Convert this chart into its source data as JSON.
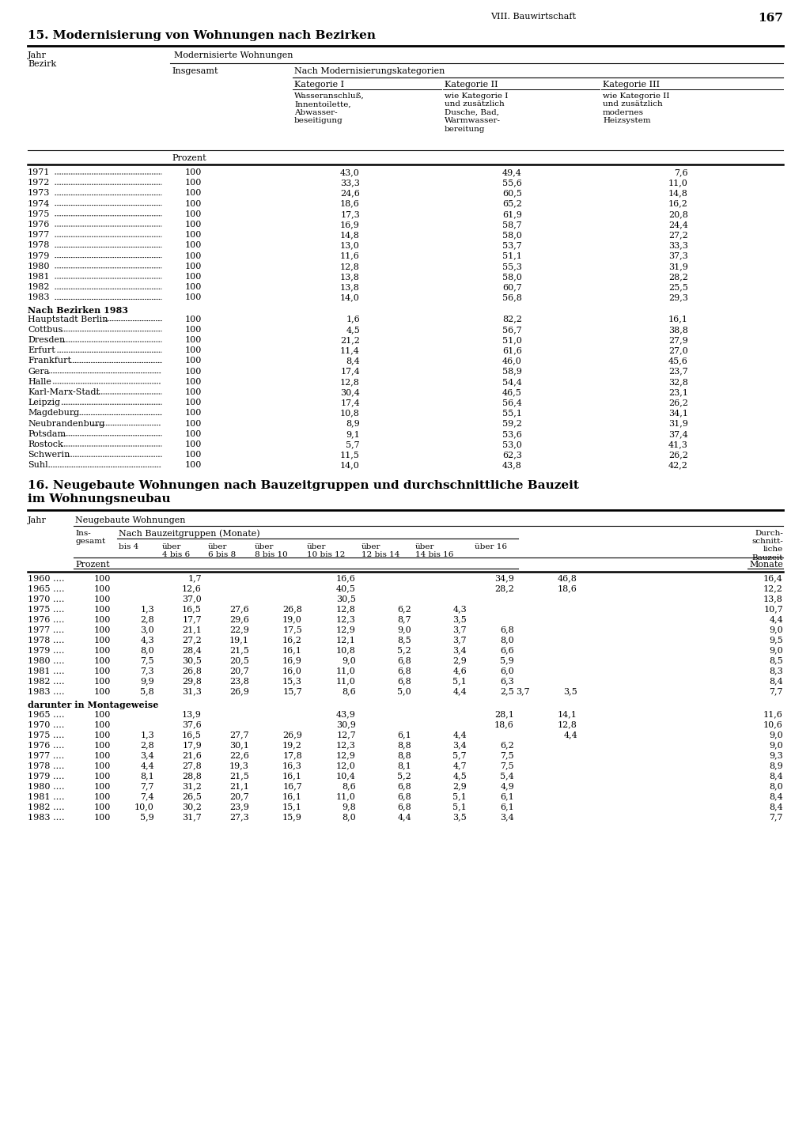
{
  "page_header": "VIII. Bauwirtschaft",
  "page_number": "167",
  "section15_title": "15. Modernisierung von Wohnungen nach Bezirken",
  "section15_years": [
    [
      "1971",
      "100",
      "43,0",
      "49,4",
      "7,6"
    ],
    [
      "1972",
      "100",
      "33,3",
      "55,6",
      "11,0"
    ],
    [
      "1973",
      "100",
      "24,6",
      "60,5",
      "14,8"
    ],
    [
      "1974",
      "100",
      "18,6",
      "65,2",
      "16,2"
    ],
    [
      "1975",
      "100",
      "17,3",
      "61,9",
      "20,8"
    ],
    [
      "1976",
      "100",
      "16,9",
      "58,7",
      "24,4"
    ],
    [
      "1977",
      "100",
      "14,8",
      "58,0",
      "27,2"
    ],
    [
      "1978",
      "100",
      "13,0",
      "53,7",
      "33,3"
    ],
    [
      "1979",
      "100",
      "11,6",
      "51,1",
      "37,3"
    ],
    [
      "1980",
      "100",
      "12,8",
      "55,3",
      "31,9"
    ],
    [
      "1981",
      "100",
      "13,8",
      "58,0",
      "28,2"
    ],
    [
      "1982",
      "100",
      "13,8",
      "60,7",
      "25,5"
    ],
    [
      "1983",
      "100",
      "14,0",
      "56,8",
      "29,3"
    ]
  ],
  "section15_bezirken_header": "Nach Bezirken 1983",
  "section15_bezirken": [
    [
      "Hauptstadt Berlin",
      "100",
      "1,6",
      "82,2",
      "16,1"
    ],
    [
      "Cottbus",
      "100",
      "4,5",
      "56,7",
      "38,8"
    ],
    [
      "Dresden",
      "100",
      "21,2",
      "51,0",
      "27,9"
    ],
    [
      "Erfurt",
      "100",
      "11,4",
      "61,6",
      "27,0"
    ],
    [
      "Frankfurt",
      "100",
      "8,4",
      "46,0",
      "45,6"
    ],
    [
      "Gera",
      "100",
      "17,4",
      "58,9",
      "23,7"
    ],
    [
      "Halle",
      "100",
      "12,8",
      "54,4",
      "32,8"
    ],
    [
      "Karl-Marx-Stadt",
      "100",
      "30,4",
      "46,5",
      "23,1"
    ],
    [
      "Leipzig",
      "100",
      "17,4",
      "56,4",
      "26,2"
    ],
    [
      "Magdeburg",
      "100",
      "10,8",
      "55,1",
      "34,1"
    ],
    [
      "Neubrandenburg",
      "100",
      "8,9",
      "59,2",
      "31,9"
    ],
    [
      "Potsdam",
      "100",
      "9,1",
      "53,6",
      "37,4"
    ],
    [
      "Rostock",
      "100",
      "5,7",
      "53,0",
      "41,3"
    ],
    [
      "Schwerin",
      "100",
      "11,5",
      "62,3",
      "26,2"
    ],
    [
      "Suhl",
      "100",
      "14,0",
      "43,8",
      "42,2"
    ]
  ],
  "section16_title_line1": "16. Neugebaute Wohnungen nach Bauzeitgruppen und durchschnittliche Bauzeit",
  "section16_title_line2": "im Wohnungsneubau",
  "section16_data": [
    [
      "1960 ….",
      "100",
      "",
      "1,7",
      "",
      "",
      "16,6",
      "",
      "",
      "34,9",
      "",
      "46,8",
      "16,4"
    ],
    [
      "1965 ….",
      "100",
      "",
      "12,6",
      "",
      "",
      "40,5",
      "",
      "",
      "28,2",
      "",
      "18,6",
      "12,2"
    ],
    [
      "1970 ….",
      "100",
      "",
      "37,0",
      "",
      "",
      "30,5",
      "",
      "",
      "",
      "",
      "",
      "13,8"
    ],
    [
      "1975 ….",
      "100",
      "1,3",
      "16,5",
      "27,6",
      "26,8",
      "12,8",
      "6,2",
      "4,3",
      "",
      "",
      "",
      "10,7"
    ],
    [
      "1976 ….",
      "100",
      "2,8",
      "17,7",
      "29,6",
      "19,0",
      "12,3",
      "8,7",
      "3,5",
      "",
      "",
      "",
      "4,4"
    ],
    [
      "1977 ….",
      "100",
      "3,0",
      "21,1",
      "22,9",
      "17,5",
      "12,9",
      "9,0",
      "3,7",
      "6,8",
      "",
      "",
      "9,0"
    ],
    [
      "1978 ….",
      "100",
      "4,3",
      "27,2",
      "19,1",
      "16,2",
      "12,1",
      "8,5",
      "3,7",
      "8,0",
      "",
      "",
      "9,5"
    ],
    [
      "1979 ….",
      "100",
      "8,0",
      "28,4",
      "21,5",
      "16,1",
      "10,8",
      "5,2",
      "3,4",
      "6,6",
      "",
      "",
      "9,0"
    ],
    [
      "1980 ….",
      "100",
      "7,5",
      "30,5",
      "20,5",
      "16,9",
      "9,0",
      "6,8",
      "2,9",
      "5,9",
      "",
      "",
      "8,5"
    ],
    [
      "1981 ….",
      "100",
      "7,3",
      "26,8",
      "20,7",
      "16,0",
      "11,0",
      "6,8",
      "4,6",
      "6,0",
      "",
      "",
      "8,3"
    ],
    [
      "1982 ….",
      "100",
      "9,9",
      "29,8",
      "23,8",
      "15,3",
      "11,0",
      "6,8",
      "5,1",
      "6,3",
      "",
      "",
      "8,4"
    ],
    [
      "1983 ….",
      "100",
      "5,8",
      "31,3",
      "26,9",
      "15,7",
      "8,6",
      "5,0",
      "4,4",
      "2,5",
      "3,7",
      "3,5",
      "7,7"
    ]
  ],
  "section16_montage_header": "darunter in Montageweise",
  "section16_montage": [
    [
      "1965 ….",
      "100",
      "",
      "13,9",
      "",
      "",
      "43,9",
      "",
      "",
      "28,1",
      "",
      "14,1",
      "11,6"
    ],
    [
      "1970 ….",
      "100",
      "",
      "37,6",
      "",
      "",
      "30,9",
      "",
      "",
      "18,6",
      "",
      "12,8",
      "10,6"
    ],
    [
      "1975 ….",
      "100",
      "1,3",
      "16,5",
      "27,7",
      "26,9",
      "12,7",
      "6,1",
      "4,4",
      "",
      "",
      "4,4",
      "9,0"
    ],
    [
      "1976 ….",
      "100",
      "2,8",
      "17,9",
      "30,1",
      "19,2",
      "12,3",
      "8,8",
      "3,4",
      "6,2",
      "",
      "",
      "9,0"
    ],
    [
      "1977 ….",
      "100",
      "3,4",
      "21,6",
      "22,6",
      "17,8",
      "12,9",
      "8,8",
      "5,7",
      "7,5",
      "",
      "",
      "9,3"
    ],
    [
      "1978 ….",
      "100",
      "4,4",
      "27,8",
      "19,3",
      "16,3",
      "12,0",
      "8,1",
      "4,7",
      "7,5",
      "",
      "",
      "8,9"
    ],
    [
      "1979 ….",
      "100",
      "8,1",
      "28,8",
      "21,5",
      "16,1",
      "10,4",
      "5,2",
      "4,5",
      "5,4",
      "",
      "",
      "8,4"
    ],
    [
      "1980 ….",
      "100",
      "7,7",
      "31,2",
      "21,1",
      "16,7",
      "8,6",
      "6,8",
      "2,9",
      "4,9",
      "",
      "",
      "8,0"
    ],
    [
      "1981 ….",
      "100",
      "7,4",
      "26,5",
      "20,7",
      "16,1",
      "11,0",
      "6,8",
      "5,1",
      "6,1",
      "",
      "",
      "8,4"
    ],
    [
      "1982 ….",
      "100",
      "10,0",
      "30,2",
      "23,9",
      "15,1",
      "9,8",
      "6,8",
      "5,1",
      "6,1",
      "",
      "",
      "8,4"
    ],
    [
      "1983 ….",
      "100",
      "5,9",
      "31,7",
      "27,3",
      "15,9",
      "8,0",
      "4,4",
      "3,5",
      "3,4",
      "",
      "",
      "7,7"
    ]
  ]
}
